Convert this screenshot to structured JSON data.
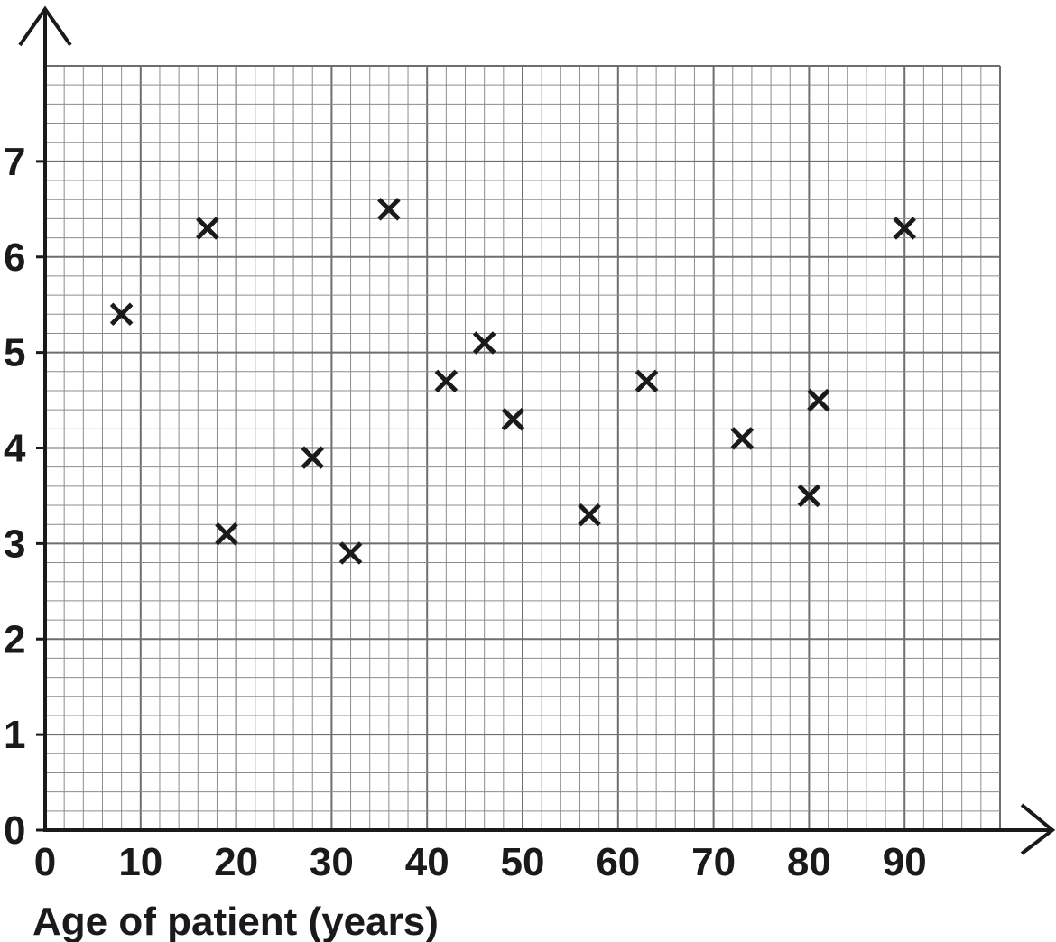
{
  "chart_data": {
    "type": "scatter",
    "title": "",
    "xlabel": "Age of patient (years)",
    "ylabel": "",
    "xlim": [
      0,
      100
    ],
    "ylim": [
      0,
      8
    ],
    "x_ticks": [
      0,
      10,
      20,
      30,
      40,
      50,
      60,
      70,
      80,
      90
    ],
    "y_ticks": [
      0,
      1,
      2,
      3,
      4,
      5,
      6,
      7
    ],
    "grid": true,
    "marker": "cross",
    "points": [
      {
        "x": 8,
        "y": 5.4
      },
      {
        "x": 17,
        "y": 6.3
      },
      {
        "x": 19,
        "y": 3.1
      },
      {
        "x": 28,
        "y": 3.9
      },
      {
        "x": 32,
        "y": 2.9
      },
      {
        "x": 36,
        "y": 6.5
      },
      {
        "x": 42,
        "y": 4.7
      },
      {
        "x": 46,
        "y": 5.1
      },
      {
        "x": 49,
        "y": 4.3
      },
      {
        "x": 57,
        "y": 3.3
      },
      {
        "x": 63,
        "y": 4.7
      },
      {
        "x": 73,
        "y": 4.1
      },
      {
        "x": 80,
        "y": 3.5
      },
      {
        "x": 81,
        "y": 4.5
      },
      {
        "x": 90,
        "y": 6.3
      }
    ]
  }
}
